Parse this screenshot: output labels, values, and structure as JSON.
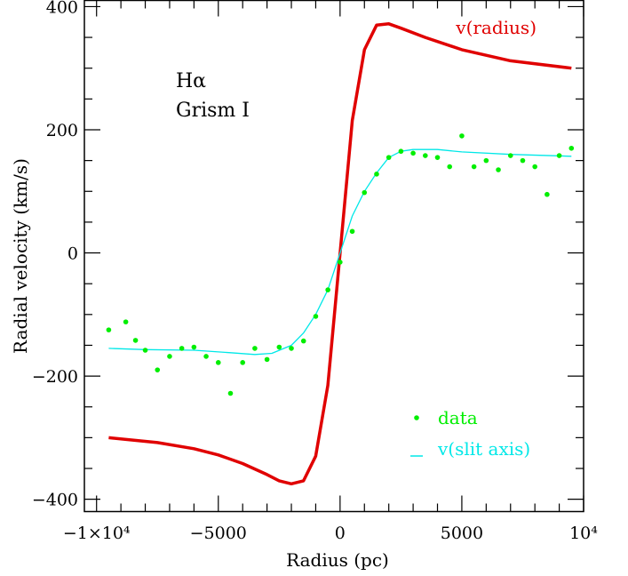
{
  "chart_data": {
    "type": "scatter",
    "xlabel": "Radius (pc)",
    "ylabel": "Radial velocity (km/s)",
    "xlim": [
      -10500,
      10000
    ],
    "ylim": [
      -420,
      410
    ],
    "x_ticks": [
      {
        "value": -10000,
        "label": "−1×10⁴"
      },
      {
        "value": -5000,
        "label": "−5000"
      },
      {
        "value": 0,
        "label": "0"
      },
      {
        "value": 5000,
        "label": "5000"
      },
      {
        "value": 10000,
        "label": "10⁴"
      }
    ],
    "y_ticks": [
      {
        "value": 400,
        "label": "400"
      },
      {
        "value": 200,
        "label": "200"
      },
      {
        "value": 0,
        "label": "0"
      },
      {
        "value": -200,
        "label": "−200"
      },
      {
        "value": -400,
        "label": "−400"
      }
    ],
    "x_minor_step": 1000,
    "y_minor_step": 50,
    "grid": false,
    "annotations": [
      "Hα",
      "Grism I"
    ],
    "legend_position": "bottom-right",
    "series": [
      {
        "name": "v(radius)",
        "kind": "line",
        "color": "#e00000",
        "label_position": "top-right",
        "x": [
          -9500,
          -7500,
          -6000,
          -5000,
          -4000,
          -3000,
          -2500,
          -2000,
          -1500,
          -1000,
          -500,
          0,
          500,
          1000,
          1500,
          2000,
          2500,
          3500,
          5000,
          7000,
          9500
        ],
        "y": [
          -300,
          -308,
          -318,
          -328,
          -342,
          -360,
          -370,
          -375,
          -370,
          -330,
          -215,
          0,
          215,
          330,
          370,
          372,
          365,
          350,
          330,
          312,
          300
        ]
      },
      {
        "name": "v(slit axis)",
        "kind": "line",
        "color": "#00e8e8",
        "x": [
          -9500,
          -8000,
          -6000,
          -4500,
          -3500,
          -2800,
          -2000,
          -1500,
          -1000,
          -500,
          0,
          500,
          1000,
          1500,
          2000,
          2500,
          3000,
          4000,
          5000,
          7000,
          9500
        ],
        "y": [
          -155,
          -157,
          -158,
          -162,
          -165,
          -163,
          -150,
          -130,
          -100,
          -60,
          0,
          60,
          100,
          130,
          155,
          165,
          168,
          168,
          164,
          160,
          157
        ]
      },
      {
        "name": "data",
        "kind": "scatter",
        "color": "#00ee00",
        "x": [
          -9500,
          -8800,
          -8400,
          -8000,
          -7500,
          -7000,
          -6500,
          -6000,
          -5500,
          -5000,
          -4500,
          -4000,
          -3500,
          -3000,
          -2500,
          -2000,
          -1500,
          -1000,
          -500,
          0,
          500,
          1000,
          1500,
          2000,
          2500,
          3000,
          3500,
          4000,
          4500,
          5000,
          5500,
          6000,
          6500,
          7000,
          7500,
          8000,
          8500,
          9000,
          9500
        ],
        "y": [
          -125,
          -112,
          -142,
          -158,
          -190,
          -168,
          -155,
          -153,
          -168,
          -178,
          -228,
          -178,
          -155,
          -173,
          -153,
          -155,
          -143,
          -103,
          -60,
          -15,
          35,
          98,
          128,
          155,
          165,
          162,
          158,
          155,
          140,
          190,
          140,
          150,
          135,
          158,
          150,
          140,
          95,
          158,
          170
        ]
      }
    ]
  }
}
